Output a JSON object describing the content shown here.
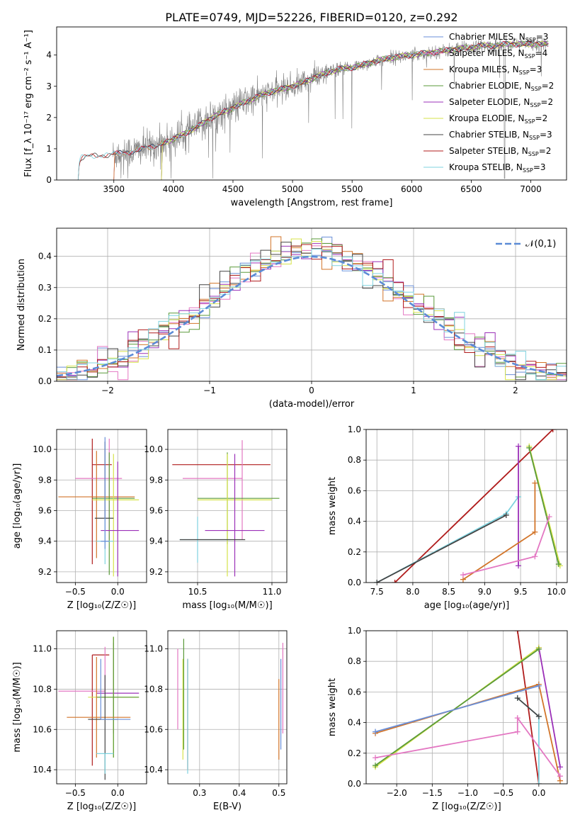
{
  "figure_title": "PLATE=0749, MJD=52226, FIBERID=0120, z=0.292",
  "colors": {
    "chabrier_miles": "#6a8fd8",
    "salpeter_miles": "#e377c2",
    "kroupa_miles": "#d2752a",
    "chabrier_elodie": "#5a9a3a",
    "salpeter_elodie": "#9b30b8",
    "kroupa_elodie": "#d6e34a",
    "chabrier_stelib": "#444444",
    "salpeter_stelib": "#b01c1c",
    "kroupa_stelib": "#7fd3df",
    "gray": "#808080",
    "normal": "#5b8bd6"
  },
  "chart_data": [
    {
      "id": "spectrum",
      "type": "line",
      "xlabel": "wavelength [Angstrom, rest frame]",
      "ylabel": "Flux [f_λ 10⁻¹⁷ erg cm⁻² s⁻¹ A⁻¹]",
      "xlim": [
        3020,
        7300
      ],
      "ylim": [
        0,
        4.9
      ],
      "xticks": [
        3500,
        4000,
        4500,
        5000,
        5500,
        6000,
        6500,
        7000
      ],
      "yticks": [
        0,
        1,
        2,
        3,
        4
      ],
      "legend_position": "top-right",
      "grid": false,
      "data_continuum": [
        [
          3200,
          0
        ],
        [
          3210,
          0.6
        ],
        [
          3230,
          0.72
        ],
        [
          3400,
          0.8
        ],
        [
          3500,
          0.82
        ],
        [
          3700,
          0.95
        ],
        [
          3850,
          1.1
        ],
        [
          3950,
          1.25
        ],
        [
          4000,
          1.3
        ],
        [
          4100,
          1.5
        ],
        [
          4200,
          1.7
        ],
        [
          4300,
          1.95
        ],
        [
          4400,
          2.15
        ],
        [
          4500,
          2.3
        ],
        [
          4600,
          2.5
        ],
        [
          4700,
          2.65
        ],
        [
          4800,
          2.8
        ],
        [
          4900,
          2.9
        ],
        [
          5000,
          3.0
        ],
        [
          5100,
          3.15
        ],
        [
          5200,
          3.3
        ],
        [
          5300,
          3.45
        ],
        [
          5400,
          3.55
        ],
        [
          5500,
          3.6
        ],
        [
          5600,
          3.7
        ],
        [
          5700,
          3.8
        ],
        [
          5800,
          3.9
        ],
        [
          5900,
          3.95
        ],
        [
          6000,
          4.0
        ],
        [
          6100,
          4.05
        ],
        [
          6200,
          4.1
        ],
        [
          6300,
          4.15
        ],
        [
          6400,
          4.2
        ],
        [
          6500,
          4.25
        ],
        [
          6600,
          4.3
        ],
        [
          6700,
          4.3
        ],
        [
          6800,
          4.35
        ],
        [
          6900,
          4.35
        ],
        [
          7000,
          4.35
        ],
        [
          7150,
          4.35
        ]
      ],
      "legend": [
        {
          "name": "Chabrier MILES, N_SSP=3",
          "color_key": "chabrier_miles"
        },
        {
          "name": "Salpeter MILES, N_SSP=4",
          "color_key": "salpeter_miles"
        },
        {
          "name": "Kroupa MILES, N_SSP=3",
          "color_key": "kroupa_miles"
        },
        {
          "name": "Chabrier ELODIE, N_SSP=2",
          "color_key": "chabrier_elodie"
        },
        {
          "name": "Salpeter ELODIE, N_SSP=2",
          "color_key": "salpeter_elodie"
        },
        {
          "name": "Kroupa ELODIE, N_SSP=2",
          "color_key": "kroupa_elodie"
        },
        {
          "name": "Chabrier STELIB, N_SSP=3",
          "color_key": "chabrier_stelib"
        },
        {
          "name": "Salpeter STELIB, N_SSP=2",
          "color_key": "salpeter_stelib"
        },
        {
          "name": "Kroupa STELIB, N_SSP=3",
          "color_key": "kroupa_stelib"
        }
      ]
    },
    {
      "id": "residuals",
      "type": "line",
      "xlabel": "(data-model)/error",
      "ylabel": "Normed distribution",
      "xlim": [
        -2.5,
        2.5
      ],
      "ylim": [
        0,
        0.49
      ],
      "xticks": [
        -2,
        -1,
        0,
        1,
        2
      ],
      "yticks": [
        0,
        0.1,
        0.2,
        0.3,
        0.4
      ],
      "grid": true,
      "legend_position": "top-right",
      "legend_label": "𝒩(0,1)",
      "bin_width": 0.1
    },
    {
      "id": "age_vs_z",
      "type": "scatter",
      "xlabel": "Z [log₁₀(Z/Z☉)]",
      "ylabel": "age  [log₁₀(age/yr)]",
      "xlim": [
        -0.72,
        0.34
      ],
      "ylim": [
        9.13,
        10.13
      ],
      "xticks": [
        -0.5,
        0.0
      ],
      "yticks": [
        9.2,
        9.4,
        9.6,
        9.8,
        10.0
      ],
      "grid": true,
      "points": [
        {
          "k": "salpeter_stelib",
          "x": -0.3,
          "y": 9.9,
          "xerr": [
            0,
            0.23
          ],
          "yerr": [
            0.65,
            0.17
          ]
        },
        {
          "k": "salpeter_miles",
          "x": -0.1,
          "y": 9.81,
          "xerr": [
            0.4,
            0.15
          ],
          "yerr": [
            0.4,
            0.26
          ]
        },
        {
          "k": "kroupa_miles",
          "x": -0.25,
          "y": 9.69,
          "xerr": [
            0.45,
            0.45
          ],
          "yerr": [
            0.4,
            0.3
          ]
        },
        {
          "k": "chabrier_elodie",
          "x": -0.1,
          "y": 9.68,
          "xerr": [
            0.2,
            0.3
          ],
          "yerr": [
            0.5,
            0.3
          ]
        },
        {
          "k": "kroupa_elodie",
          "x": -0.05,
          "y": 9.67,
          "xerr": [
            0.25,
            0.3
          ],
          "yerr": [
            0.5,
            0.3
          ]
        },
        {
          "k": "chabrier_stelib",
          "x": -0.15,
          "y": 9.55,
          "xerr": [
            0.12,
            0.1
          ],
          "yerr": [
            0.0,
            0.5
          ]
        },
        {
          "k": "salpeter_elodie",
          "x": 0.0,
          "y": 9.47,
          "xerr": [
            0.2,
            0.25
          ],
          "yerr": [
            0.3,
            0.45
          ]
        },
        {
          "k": "kroupa_stelib",
          "x": -0.15,
          "y": 9.4,
          "xerr": [
            0.1,
            0.1
          ],
          "yerr": [
            0.15,
            0.15
          ]
        },
        {
          "k": "chabrier_miles",
          "x": -0.15,
          "y": 9.4,
          "xerr": [
            0.05,
            0.05
          ],
          "yerr": [
            0.05,
            0.68
          ]
        }
      ]
    },
    {
      "id": "age_vs_mass",
      "type": "scatter",
      "xlabel": "mass [log₁₀(M/M☉)]",
      "ylabel": "",
      "xlim": [
        10.3,
        11.1
      ],
      "ylim": [
        9.13,
        10.13
      ],
      "xticks": [
        10.5,
        11.0
      ],
      "yticks": [
        9.2,
        9.4,
        9.6,
        9.8,
        10.0
      ],
      "grid": true,
      "points": [
        {
          "k": "salpeter_stelib",
          "x": 10.75,
          "y": 9.9,
          "xerr": [
            0.42,
            0.24
          ],
          "yerr": [
            0.0,
            0.0
          ]
        },
        {
          "k": "salpeter_miles",
          "x": 10.8,
          "y": 9.81,
          "xerr": [
            0.4,
            0.0
          ],
          "yerr": [
            0.4,
            0.25
          ]
        },
        {
          "k": "chabrier_elodie",
          "x": 10.7,
          "y": 9.68,
          "xerr": [
            0.2,
            0.35
          ],
          "yerr": [
            0.3,
            0.3
          ]
        },
        {
          "k": "kroupa_elodie",
          "x": 10.7,
          "y": 9.67,
          "xerr": [
            0.2,
            0.3
          ],
          "yerr": [
            0.5,
            0.3
          ]
        },
        {
          "k": "salpeter_elodie",
          "x": 10.75,
          "y": 9.47,
          "xerr": [
            0.2,
            0.2
          ],
          "yerr": [
            0.3,
            0.5
          ]
        },
        {
          "k": "kroupa_stelib",
          "x": 10.5,
          "y": 9.41,
          "xerr": [
            0.12,
            0.22
          ],
          "yerr": [
            0.15,
            0.15
          ]
        },
        {
          "k": "chabrier_stelib",
          "x": 10.5,
          "y": 9.41,
          "xerr": [
            0.12,
            0.32
          ],
          "yerr": [
            0.0,
            0.0
          ]
        }
      ]
    },
    {
      "id": "weight_vs_age",
      "type": "line",
      "xlabel": "age  [log₁₀(age/yr)]",
      "ylabel": "mass weight",
      "xlim": [
        7.35,
        10.15
      ],
      "ylim": [
        0,
        1
      ],
      "xticks": [
        7.5,
        8.0,
        8.5,
        9.0,
        9.5,
        10.0
      ],
      "yticks": [
        0.0,
        0.2,
        0.4,
        0.6,
        0.8,
        1.0
      ],
      "grid": true,
      "series": [
        {
          "k": "salpeter_stelib",
          "points": [
            [
              7.75,
              0.0
            ],
            [
              9.95,
              1.0
            ]
          ]
        },
        {
          "k": "kroupa_stelib",
          "points": [
            [
              7.5,
              0.0
            ],
            [
              9.3,
              0.45
            ],
            [
              9.47,
              0.56
            ]
          ]
        },
        {
          "k": "chabrier_stelib",
          "points": [
            [
              7.5,
              0.0
            ],
            [
              9.3,
              0.44
            ]
          ]
        },
        {
          "k": "salpeter_elodie",
          "points": [
            [
              9.47,
              0.11
            ],
            [
              9.47,
              0.89
            ]
          ]
        },
        {
          "k": "kroupa_elodie",
          "points": [
            [
              9.62,
              0.89
            ],
            [
              10.05,
              0.11
            ]
          ]
        },
        {
          "k": "chabrier_elodie",
          "points": [
            [
              9.62,
              0.88
            ],
            [
              10.03,
              0.12
            ]
          ]
        },
        {
          "k": "kroupa_miles",
          "points": [
            [
              8.7,
              0.02
            ],
            [
              9.7,
              0.33
            ],
            [
              9.7,
              0.65
            ]
          ]
        },
        {
          "k": "salpeter_miles",
          "points": [
            [
              8.7,
              0.05
            ],
            [
              9.7,
              0.17
            ],
            [
              9.9,
              0.43
            ]
          ]
        }
      ]
    },
    {
      "id": "mass_vs_z",
      "type": "scatter",
      "xlabel": "Z [log₁₀(Z/Z☉)]",
      "ylabel": "mass [log₁₀(M/M☉)]",
      "xlim": [
        -0.72,
        0.34
      ],
      "ylim": [
        10.33,
        11.09
      ],
      "xticks": [
        -0.5,
        0.0
      ],
      "yticks": [
        10.4,
        10.6,
        10.8,
        11.0
      ],
      "grid": true,
      "points": [
        {
          "k": "salpeter_stelib",
          "x": -0.3,
          "y": 10.97,
          "xerr": [
            0,
            0.2
          ],
          "yerr": [
            0.55,
            0.0
          ]
        },
        {
          "k": "salpeter_elodie",
          "x": -0.05,
          "y": 10.78,
          "xerr": [
            0.2,
            0.3
          ],
          "yerr": [
            0.2,
            0.25
          ]
        },
        {
          "k": "salpeter_miles",
          "x": -0.15,
          "y": 10.79,
          "xerr": [
            0.55,
            0.0
          ],
          "yerr": [
            0.0,
            0.22
          ]
        },
        {
          "k": "kroupa_elodie",
          "x": -0.05,
          "y": 10.76,
          "xerr": [
            0.3,
            0.3
          ],
          "yerr": [
            0.3,
            0.3
          ]
        },
        {
          "k": "chabrier_elodie",
          "x": -0.05,
          "y": 10.76,
          "xerr": [
            0.2,
            0.3
          ],
          "yerr": [
            0.3,
            0.3
          ]
        },
        {
          "k": "kroupa_miles",
          "x": -0.25,
          "y": 10.66,
          "xerr": [
            0.35,
            0.4
          ],
          "yerr": [
            0.2,
            0.3
          ]
        },
        {
          "k": "chabrier_stelib",
          "x": -0.15,
          "y": 10.65,
          "xerr": [
            0.2,
            0.15
          ],
          "yerr": [
            0.3,
            0.22
          ]
        },
        {
          "k": "kroupa_stelib",
          "x": -0.15,
          "y": 10.48,
          "xerr": [
            0.1,
            0.1
          ],
          "yerr": [
            0.1,
            0.0
          ]
        },
        {
          "k": "chabrier_miles",
          "x": -0.2,
          "y": 10.65,
          "xerr": [
            0,
            0.35
          ],
          "yerr": [
            0.0,
            0.3
          ]
        }
      ]
    },
    {
      "id": "mass_vs_ebv",
      "type": "scatter",
      "xlabel": "E(B-V)",
      "ylabel": "",
      "xlim": [
        0.22,
        0.52
      ],
      "ylim": [
        10.33,
        11.09
      ],
      "xticks": [
        0.3,
        0.4,
        0.5
      ],
      "yticks": [
        10.4,
        10.6,
        10.8,
        11.0
      ],
      "grid": true,
      "points": [
        {
          "k": "salpeter_miles",
          "x": 0.245,
          "y": 10.8,
          "xerr": [
            0,
            0
          ],
          "yerr": [
            0.2,
            0.2
          ]
        },
        {
          "k": "kroupa_elodie",
          "x": 0.258,
          "y": 10.7,
          "xerr": [
            0,
            0
          ],
          "yerr": [
            0.25,
            0.25
          ]
        },
        {
          "k": "chabrier_elodie",
          "x": 0.26,
          "y": 10.75,
          "xerr": [
            0,
            0
          ],
          "yerr": [
            0.25,
            0.3
          ]
        },
        {
          "k": "salpeter_stelib",
          "x": 0.27,
          "y": 10.7,
          "xerr": [
            0,
            0
          ],
          "yerr": [
            0.3,
            0.25
          ]
        },
        {
          "k": "kroupa_stelib",
          "x": 0.27,
          "y": 10.6,
          "xerr": [
            0,
            0
          ],
          "yerr": [
            0.22,
            0.35
          ]
        },
        {
          "k": "kroupa_miles",
          "x": 0.5,
          "y": 10.65,
          "xerr": [
            0,
            0
          ],
          "yerr": [
            0.2,
            0.2
          ]
        },
        {
          "k": "chabrier_miles",
          "x": 0.505,
          "y": 10.7,
          "xerr": [
            0,
            0
          ],
          "yerr": [
            0.2,
            0.25
          ]
        },
        {
          "k": "salpeter_miles",
          "x": 0.51,
          "y": 10.78,
          "xerr": [
            0,
            0
          ],
          "yerr": [
            0.2,
            0.25
          ]
        }
      ]
    },
    {
      "id": "weight_vs_z",
      "type": "line",
      "xlabel": "Z [log₁₀(Z/Z☉)]",
      "ylabel": "mass weight",
      "xlim": [
        -2.43,
        0.4
      ],
      "ylim": [
        0,
        1
      ],
      "xticks": [
        -2.0,
        -1.5,
        -1.0,
        -0.5,
        0.0
      ],
      "yticks": [
        0.0,
        0.2,
        0.4,
        0.6,
        0.8,
        1.0
      ],
      "grid": true,
      "series": [
        {
          "k": "salpeter_stelib",
          "points": [
            [
              -0.3,
              1.0
            ],
            [
              0.0,
              0.0
            ]
          ]
        },
        {
          "k": "salpeter_elodie",
          "points": [
            [
              0.0,
              0.89
            ],
            [
              0.3,
              0.11
            ]
          ]
        },
        {
          "k": "kroupa_elodie",
          "points": [
            [
              -2.3,
              0.11
            ],
            [
              0.0,
              0.89
            ]
          ]
        },
        {
          "k": "chabrier_elodie",
          "points": [
            [
              -2.3,
              0.12
            ],
            [
              0.0,
              0.88
            ]
          ]
        },
        {
          "k": "kroupa_miles",
          "points": [
            [
              -2.3,
              0.33
            ],
            [
              0.0,
              0.65
            ],
            [
              0.3,
              0.02
            ]
          ]
        },
        {
          "k": "chabrier_miles",
          "points": [
            [
              -2.3,
              0.34
            ],
            [
              0.0,
              0.64
            ]
          ]
        },
        {
          "k": "kroupa_stelib",
          "points": [
            [
              -0.3,
              0.56
            ],
            [
              0.0,
              0.44
            ],
            [
              0.0,
              0.0
            ]
          ]
        },
        {
          "k": "chabrier_stelib",
          "points": [
            [
              -0.3,
              0.56
            ],
            [
              0.0,
              0.44
            ]
          ]
        },
        {
          "k": "salpeter_miles",
          "points": [
            [
              -2.3,
              0.17
            ],
            [
              -0.3,
              0.34
            ],
            [
              -0.3,
              0.43
            ],
            [
              0.3,
              0.05
            ]
          ]
        }
      ]
    }
  ]
}
